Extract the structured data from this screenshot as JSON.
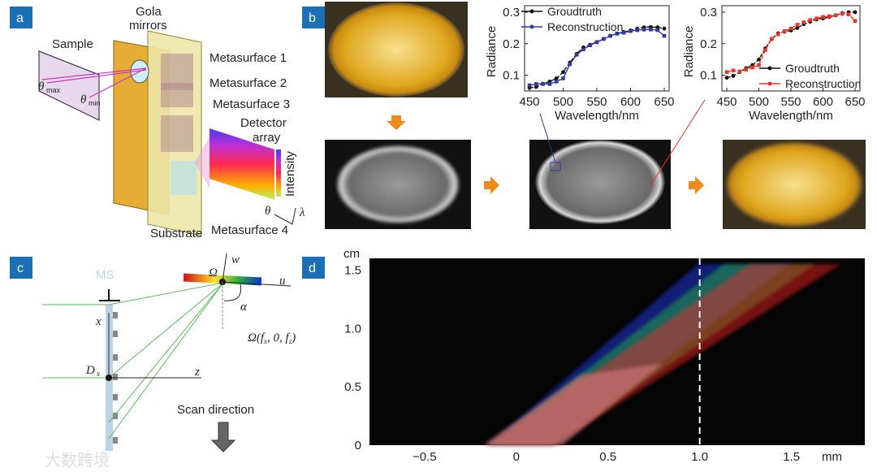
{
  "panels": {
    "a": "a",
    "b": "b",
    "c": "c",
    "d": "d"
  },
  "panel_a": {
    "sample": "Sample",
    "gola1": "Gola",
    "gola2": "mirrors",
    "ms1": "Metasurface 1",
    "ms2": "Metasurface 2",
    "ms3": "Metasurface 3",
    "ms4": "Metasurface 4",
    "detector1": "Detector",
    "detector2": "array",
    "intensity": "Intensity",
    "substrate": "Substrate",
    "theta_max": "θ",
    "theta_max_sub": "max",
    "theta_min": "θ",
    "theta_min_sub": "min",
    "theta": "θ",
    "lambda": "λ"
  },
  "panel_c": {
    "ms": "MS",
    "x": "x",
    "z": "z",
    "dx": "D",
    "dx_sub": "x",
    "w": "w",
    "u": "u",
    "omega": "Ω",
    "alpha": "α",
    "omega_coord": "Ω(f",
    "omega_coord_mid": ", 0, f",
    "omega_coord_end": ")",
    "sub_x": "x",
    "sub_z": "z",
    "scan": "Scan direction"
  },
  "watermark": "大数跨境",
  "colors": {
    "panel_label": "#1a6fb5",
    "groundtruth": "#111111",
    "recon_blue": "#2f3a9a",
    "recon_red": "#e8352a",
    "lens": "#e3a52a"
  },
  "chart_data": [
    {
      "type": "line",
      "title": "",
      "xlabel": "Wavelength/nm",
      "ylabel": "Radiance",
      "xlim": [
        450,
        650
      ],
      "ylim": [
        0.05,
        0.3
      ],
      "xticks": [
        "450",
        "500",
        "550",
        "600",
        "650"
      ],
      "yticks": [
        "0.1",
        "0.2",
        "0.3"
      ],
      "legend": "top-left",
      "x": [
        450,
        460,
        470,
        480,
        490,
        500,
        510,
        520,
        530,
        540,
        550,
        560,
        570,
        580,
        590,
        600,
        610,
        620,
        630,
        640,
        650
      ],
      "series": [
        {
          "name": "Groudtruth",
          "color": "#111111",
          "values": [
            0.06,
            0.063,
            0.072,
            0.08,
            0.09,
            0.11,
            0.14,
            0.168,
            0.188,
            0.197,
            0.205,
            0.215,
            0.225,
            0.232,
            0.237,
            0.242,
            0.248,
            0.252,
            0.253,
            0.252,
            0.248
          ]
        },
        {
          "name": "Reconstruction",
          "color": "#2f3a9a",
          "values": [
            0.068,
            0.072,
            0.073,
            0.072,
            0.08,
            0.09,
            0.135,
            0.165,
            0.182,
            0.195,
            0.205,
            0.215,
            0.225,
            0.232,
            0.235,
            0.24,
            0.243,
            0.245,
            0.245,
            0.243,
            0.225
          ]
        }
      ]
    },
    {
      "type": "line",
      "title": "",
      "xlabel": "Wavelength/nm",
      "ylabel": "Radiance",
      "xlim": [
        450,
        650
      ],
      "ylim": [
        0.05,
        0.3
      ],
      "xticks": [
        "450",
        "500",
        "550",
        "600",
        "650"
      ],
      "yticks": [
        "0.1",
        "0.2",
        "0.3"
      ],
      "legend": "bottom-right",
      "x": [
        450,
        460,
        470,
        480,
        490,
        500,
        510,
        520,
        530,
        540,
        550,
        560,
        570,
        580,
        590,
        600,
        610,
        620,
        630,
        640,
        650
      ],
      "series": [
        {
          "name": "Groudtruth",
          "color": "#111111",
          "values": [
            0.092,
            0.098,
            0.11,
            0.122,
            0.132,
            0.15,
            0.185,
            0.215,
            0.233,
            0.238,
            0.242,
            0.25,
            0.262,
            0.27,
            0.277,
            0.28,
            0.285,
            0.29,
            0.297,
            0.3,
            0.3
          ]
        },
        {
          "name": "Reconstruction",
          "color": "#e8352a",
          "values": [
            0.11,
            0.115,
            0.112,
            0.118,
            0.125,
            0.132,
            0.18,
            0.215,
            0.23,
            0.24,
            0.248,
            0.26,
            0.268,
            0.275,
            0.28,
            0.285,
            0.287,
            0.29,
            0.295,
            0.293,
            0.272
          ]
        }
      ]
    },
    {
      "type": "heatmap",
      "title": "",
      "xlabel": "mm",
      "ylabel": "cm",
      "xlim": [
        -0.8,
        1.9
      ],
      "ylim": [
        0,
        1.6
      ],
      "xticks": [
        "−0.5",
        "0",
        "0.5",
        "1.0",
        "1.5"
      ],
      "xtick_values": [
        -0.5,
        0,
        0.5,
        1.0,
        1.5
      ],
      "yticks": [
        "0",
        "0.5",
        "1.0",
        "1.5"
      ],
      "ytick_values": [
        0,
        0.5,
        1.0,
        1.5
      ],
      "marker_line_x": 1.0
    }
  ]
}
